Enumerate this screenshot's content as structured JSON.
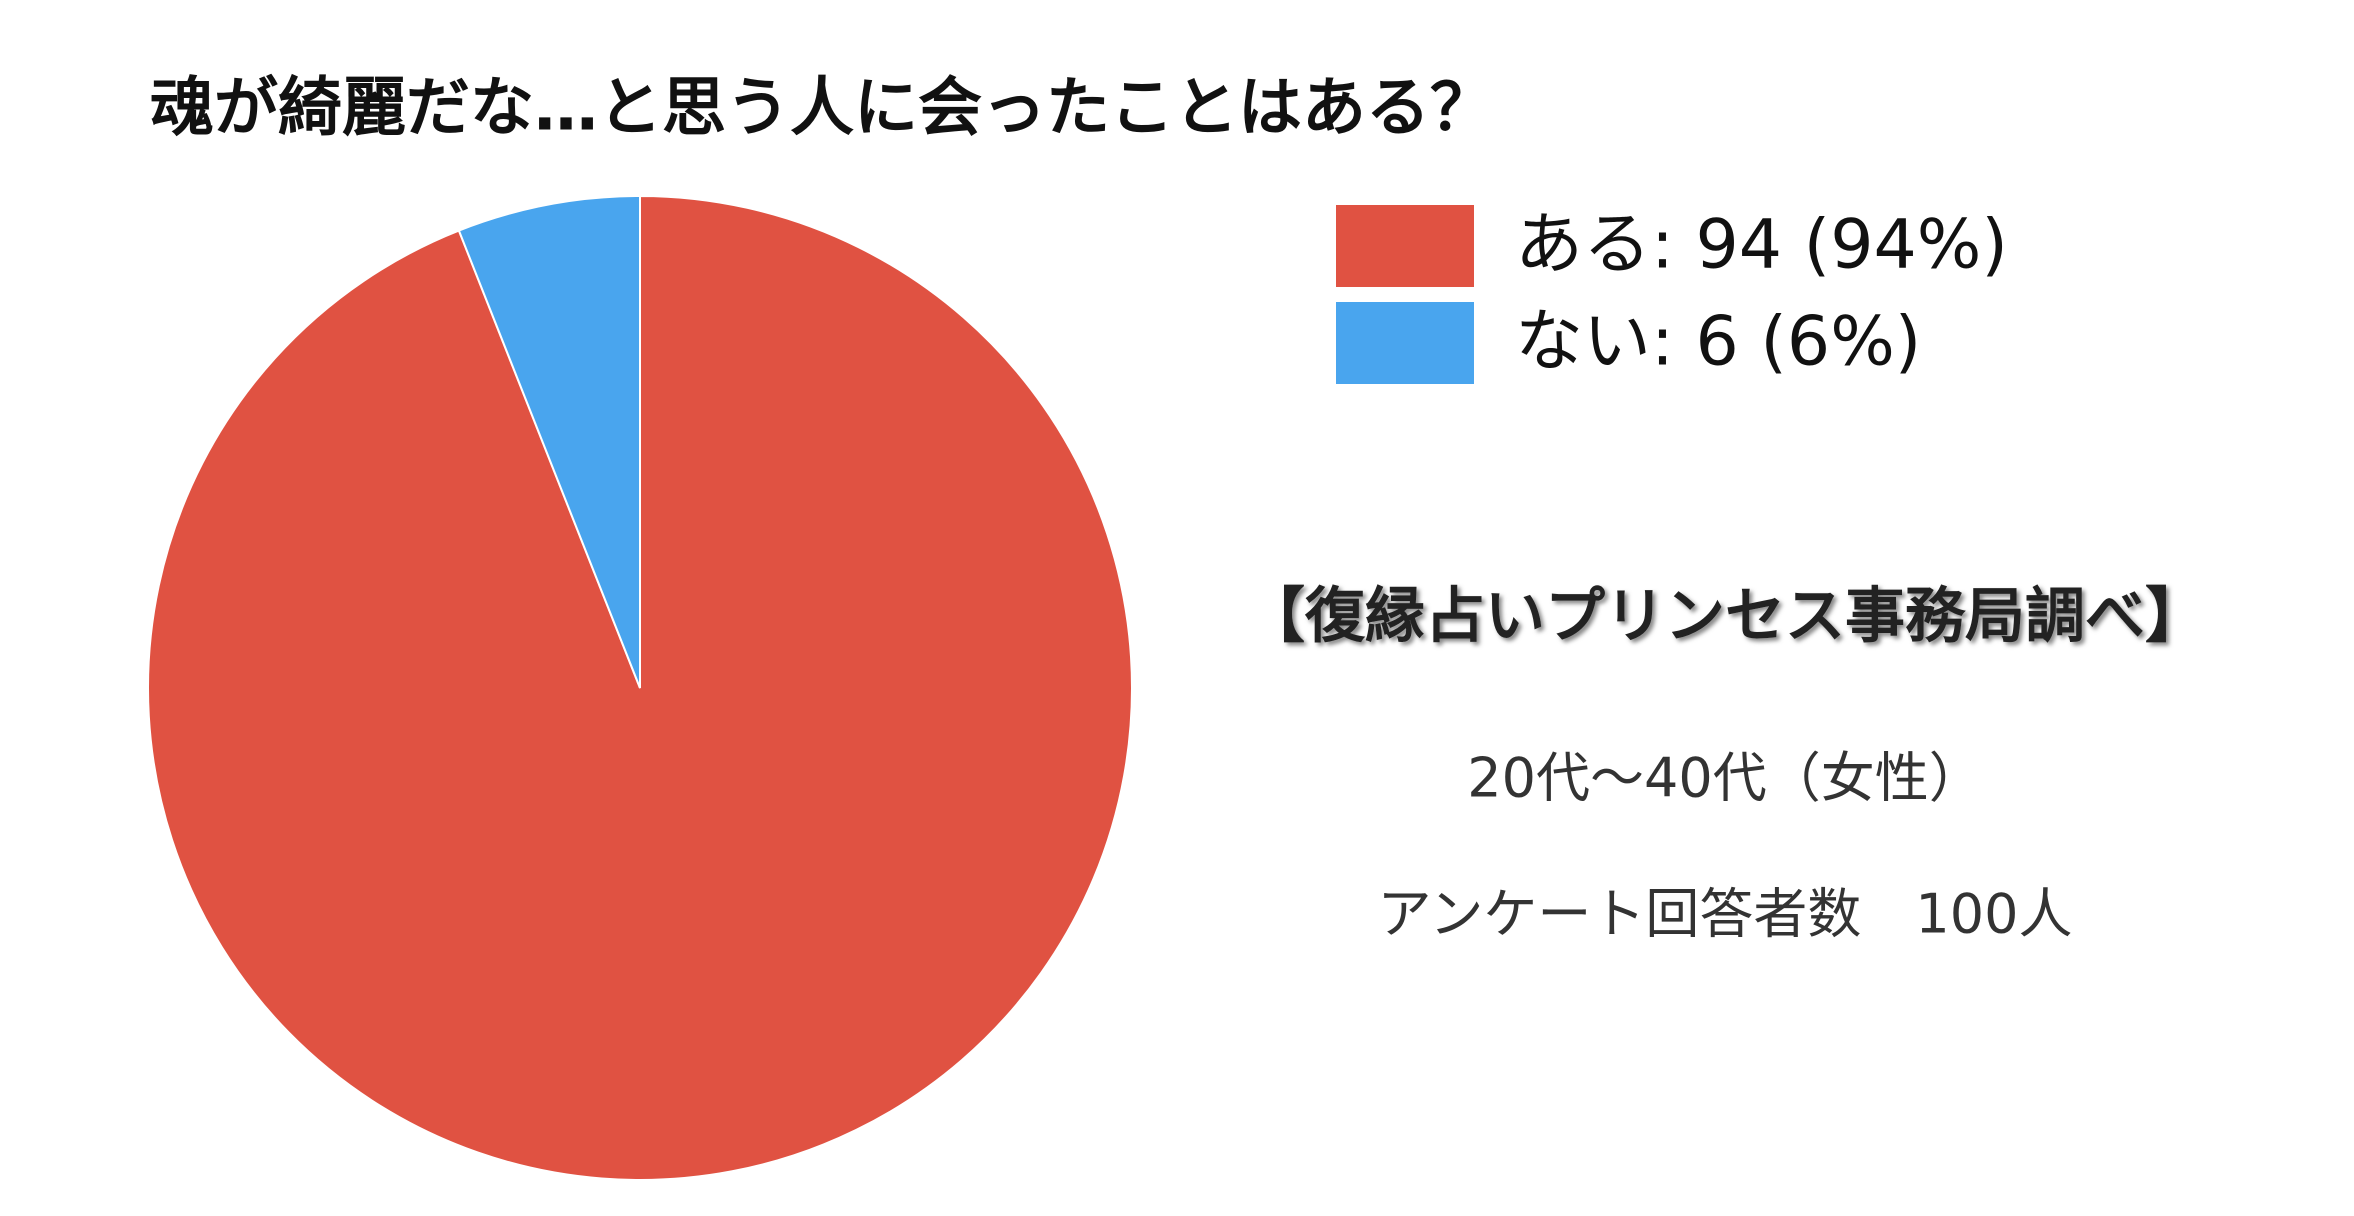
{
  "chart_data": {
    "type": "pie",
    "title": "魂が綺麗だな…と思う人に会ったことはある？",
    "categories": [
      "ある: 94 (94%)",
      "ない: 6 (6%)"
    ],
    "values": [
      94,
      6
    ],
    "colors": [
      "#e05242",
      "#49a5ee"
    ],
    "annotations": [
      "【復縁占いプリンセス事務局調べ】",
      "20代〜40代（女性）",
      "アンケート回答者数　100人"
    ]
  }
}
